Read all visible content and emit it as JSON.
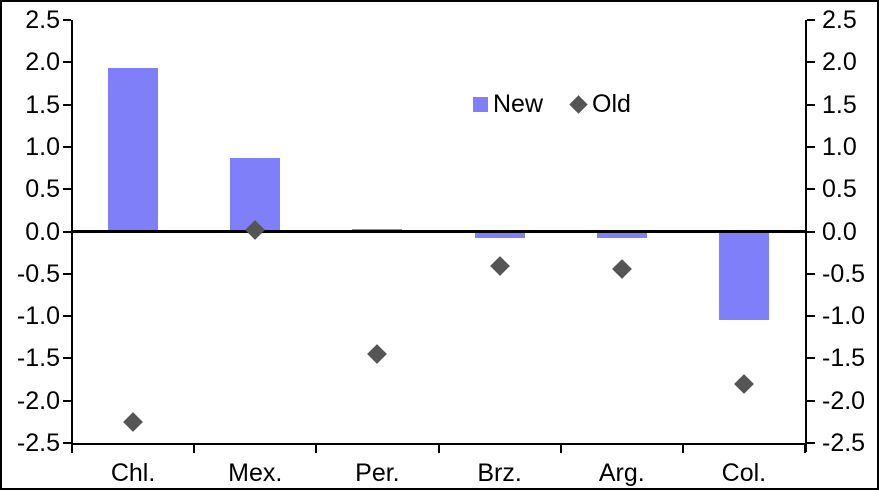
{
  "chart_data": {
    "type": "bar",
    "subtype": "bar-with-diamond-markers-combo",
    "title": "",
    "xlabel": "",
    "ylabel": "",
    "categories": [
      "Chl.",
      "Mex.",
      "Per.",
      "Brz.",
      "Arg.",
      "Col."
    ],
    "series": [
      {
        "name": "New",
        "type": "bar",
        "marker": "square",
        "color": "#7F7FF9",
        "values": [
          1.93,
          0.87,
          0.03,
          -0.08,
          -0.08,
          -1.05
        ]
      },
      {
        "name": "Old",
        "type": "scatter",
        "marker": "diamond",
        "color": "#555555",
        "values": [
          -2.25,
          0.02,
          -1.45,
          -0.41,
          -0.44,
          -1.8
        ]
      }
    ],
    "y_axis": {
      "min": -2.5,
      "max": 2.5,
      "step": 0.5,
      "sides": "both",
      "tick_labels": [
        "2.5",
        "2.0",
        "1.5",
        "1.0",
        "0.5",
        "0.0",
        "-0.5",
        "-1.0",
        "-1.5",
        "-2.0",
        "-2.5"
      ]
    },
    "grid": false,
    "zero_line": true,
    "legend_position": "inside-upper-middle"
  },
  "colors": {
    "background": "#FFFFFF",
    "frame": "#000000",
    "axis": "#000000",
    "text": "#000000",
    "bar": "#7F7FF9",
    "diamond": "#555555"
  }
}
